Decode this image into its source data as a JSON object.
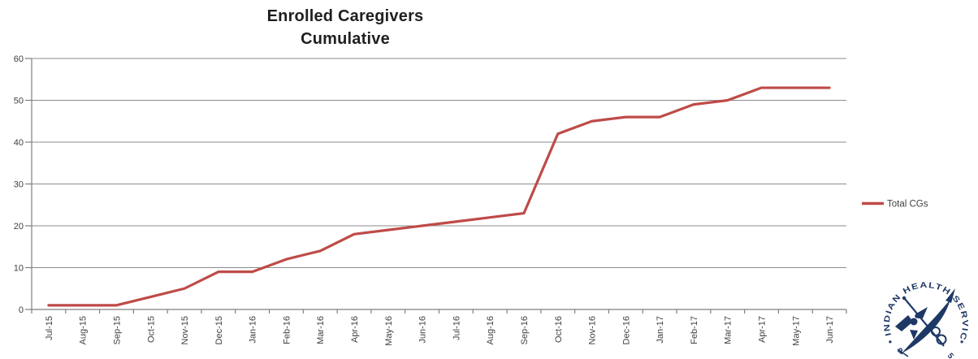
{
  "title": {
    "line1": "Enrolled Caregivers",
    "line2": "Cumulative"
  },
  "legend": {
    "label": "Total CGs"
  },
  "logo": {
    "arc_text": "INDIAN HEALTH SERVICE",
    "bottom_fragment_left": "R",
    "bottom_fragment_right": "5"
  },
  "colors": {
    "series": "#BE4B48",
    "gridline": "#8C8C8C",
    "axis": "#7F7F7F",
    "tick_label": "#3F3F3F",
    "title_text": "#1F1F1F",
    "logo_navy": "#1E3866"
  },
  "chart_data": {
    "type": "line",
    "title": "Enrolled Caregivers Cumulative",
    "xlabel": "",
    "ylabel": "",
    "ylim": [
      0,
      60
    ],
    "ytick_interval": 10,
    "yticks": [
      0,
      10,
      20,
      30,
      40,
      50,
      60
    ],
    "grid": true,
    "legend_position": "right",
    "categories": [
      "Jul-15",
      "Aug-15",
      "Sep-15",
      "Oct-15",
      "Nov-15",
      "Dec-15",
      "Jan-16",
      "Feb-16",
      "Mar-16",
      "Apr-16",
      "May-16",
      "Jun-16",
      "Jul-16",
      "Aug-16",
      "Sep-16",
      "Oct-16",
      "Nov-16",
      "Dec-16",
      "Jan-17",
      "Feb-17",
      "Mar-17",
      "Apr-17",
      "May-17",
      "Jun-17"
    ],
    "series": [
      {
        "name": "Total CGs",
        "values": [
          1,
          1,
          1,
          3,
          5,
          9,
          9,
          12,
          14,
          18,
          19,
          20,
          21,
          22,
          23,
          42,
          45,
          46,
          46,
          49,
          50,
          53,
          53,
          53
        ]
      }
    ]
  }
}
